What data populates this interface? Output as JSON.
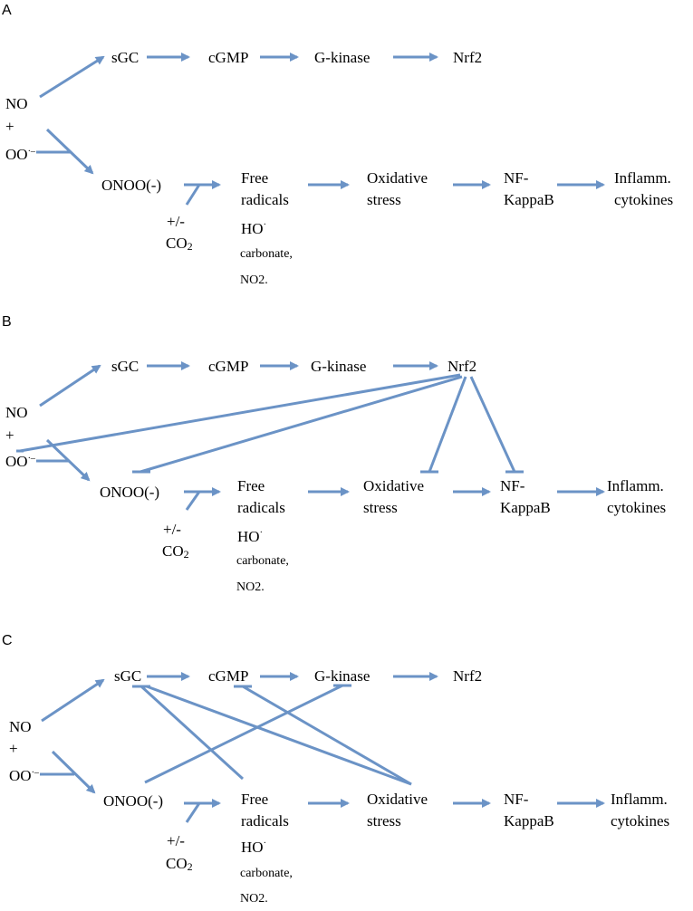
{
  "accent_color": "#6b93c6",
  "panels": [
    {
      "letter": "A",
      "nodes": {
        "sgc": "sGC",
        "cgmp": "cGMP",
        "gkinase": "G-kinase",
        "nrf2": "Nrf2",
        "no": "NO",
        "plus": "+",
        "oo": "OO",
        "oo_sup": "·–",
        "onoo": "ONOO(-)",
        "free1": "Free",
        "free2": "radicals",
        "ox1": "Oxidative",
        "ox2": "stress",
        "nf1": "NF-",
        "nf2": "KappaB",
        "inf1": "Inflamm.",
        "inf2": "cytokines",
        "pm": "+/-",
        "co": "CO",
        "co_sub": "2",
        "ho": "HO",
        "ho_sup": "·",
        "carb": "carbonate,",
        "no2": "NO2."
      }
    },
    {
      "letter": "B",
      "nodes": {
        "sgc": "sGC",
        "cgmp": "cGMP",
        "gkinase": "G-kinase",
        "nrf2": "Nrf2",
        "no": "NO",
        "plus": "+",
        "oo": "OO",
        "oo_sup": "·–",
        "onoo": "ONOO(-)",
        "free1": "Free",
        "free2": "radicals",
        "ox1": "Oxidative",
        "ox2": "stress",
        "nf1": "NF-",
        "nf2": "KappaB",
        "inf1": "Inflamm.",
        "inf2": "cytokines",
        "pm": "+/-",
        "co": "CO",
        "co_sub": "2",
        "ho": "HO",
        "ho_sup": "·",
        "carb": "carbonate,",
        "no2": "NO2."
      }
    },
    {
      "letter": "C",
      "nodes": {
        "sgc": "sGC",
        "cgmp": "cGMP",
        "gkinase": "G-kinase",
        "nrf2": "Nrf2",
        "no": "NO",
        "plus": "+",
        "oo": "OO",
        "oo_sup": "·–",
        "onoo": "ONOO(-)",
        "free1": "Free",
        "free2": "radicals",
        "ox1": "Oxidative",
        "ox2": "stress",
        "nf1": "NF-",
        "nf2": "KappaB",
        "inf1": "Inflamm.",
        "inf2": "cytokines",
        "pm": "+/-",
        "co": "CO",
        "co_sub": "2",
        "ho": "HO",
        "ho_sup": "·",
        "carb": "carbonate,",
        "no2": "NO2."
      }
    }
  ]
}
